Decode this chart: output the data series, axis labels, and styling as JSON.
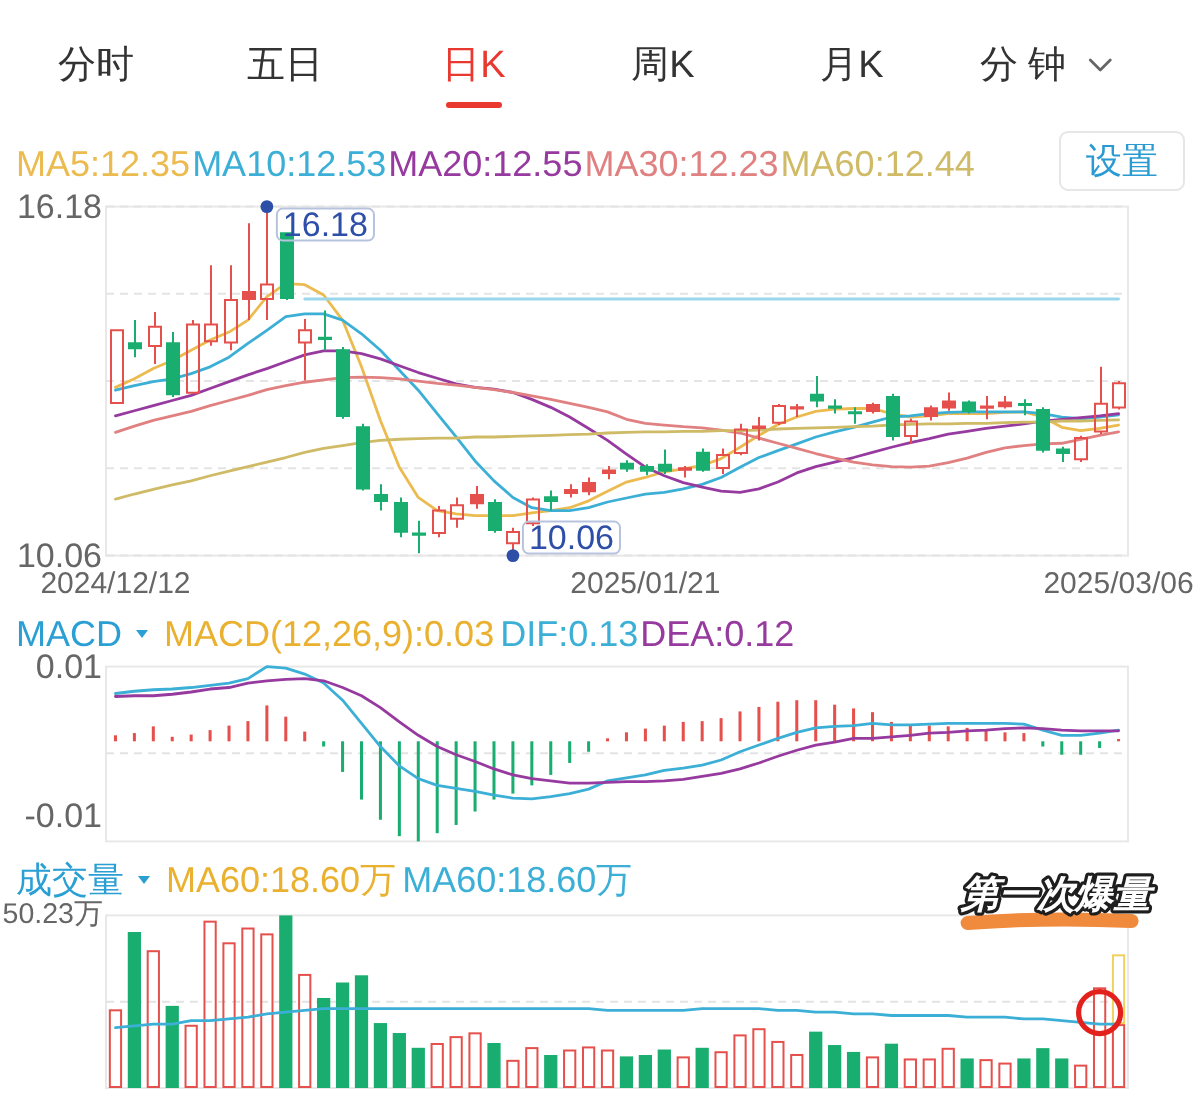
{
  "chart_data": [
    {
      "type": "other",
      "categories": [
        "分时",
        "五日",
        "日K",
        "周K",
        "月K",
        "分 钟"
      ],
      "colors": [
        "#333333",
        "#333333",
        "#e8382f",
        "#333333",
        "#333333",
        "#333333"
      ]
    },
    {
      "type": "candlestick",
      "legend": "top left",
      "grid": "y",
      "ylim": [
        10.06,
        16.18
      ],
      "yticks": [
        16.18,
        {
          "value": 14.65,
          "label": null
        },
        {
          "value": 13.12,
          "label": null
        },
        {
          "value": 11.59,
          "label": null
        },
        10.06
      ],
      "categories": [
        "2024/12/12",
        null,
        null,
        null,
        null,
        null,
        null,
        null,
        null,
        null,
        null,
        null,
        null,
        null,
        null,
        null,
        null,
        null,
        null,
        null,
        null,
        null,
        null,
        null,
        null,
        null,
        null,
        null,
        "2025/01/21",
        null,
        null,
        null,
        null,
        null,
        null,
        null,
        null,
        null,
        null,
        null,
        null,
        null,
        null,
        null,
        null,
        null,
        null,
        null,
        null,
        null,
        null,
        null,
        null,
        "2025/03/06"
      ],
      "ohlc": [
        [
          12.72,
          14.03,
          12.72,
          14.03
        ],
        [
          13.8,
          14.19,
          13.54,
          13.68
        ],
        [
          13.72,
          14.33,
          13.42,
          14.09
        ],
        [
          13.8,
          13.98,
          12.84,
          12.87
        ],
        [
          12.9,
          14.19,
          12.9,
          14.13
        ],
        [
          13.8,
          15.15,
          13.74,
          14.13
        ],
        [
          13.78,
          15.15,
          13.66,
          14.56
        ],
        [
          14.54,
          15.89,
          14.19,
          14.7
        ],
        [
          14.54,
          16.18,
          14.19,
          14.83
        ],
        [
          15.73,
          15.73,
          14.54,
          14.56
        ],
        [
          13.78,
          14.21,
          13.13,
          14.03
        ],
        [
          13.89,
          14.36,
          13.66,
          13.85
        ],
        [
          13.68,
          13.72,
          12.46,
          12.49
        ],
        [
          12.33,
          12.37,
          11.2,
          11.22
        ],
        [
          11.14,
          11.31,
          10.85,
          11.0
        ],
        [
          11.0,
          11.08,
          10.38,
          10.46
        ],
        [
          10.46,
          10.67,
          10.1,
          10.41
        ],
        [
          10.44,
          10.93,
          10.38,
          10.87
        ],
        [
          10.69,
          11.08,
          10.55,
          10.96
        ],
        [
          10.96,
          11.28,
          10.88,
          11.14
        ],
        [
          11.0,
          11.05,
          10.46,
          10.49
        ],
        [
          10.26,
          10.55,
          10.06,
          10.49
        ],
        [
          10.61,
          11.08,
          10.58,
          11.06
        ],
        [
          11.1,
          11.2,
          10.85,
          11.0
        ],
        [
          11.14,
          11.31,
          11.08,
          11.23
        ],
        [
          11.17,
          11.43,
          11.12,
          11.35
        ],
        [
          11.49,
          11.63,
          11.4,
          11.57
        ],
        [
          11.69,
          11.73,
          11.53,
          11.57
        ],
        [
          11.63,
          11.66,
          11.47,
          11.53
        ],
        [
          11.67,
          11.92,
          11.49,
          11.53
        ],
        [
          11.55,
          11.63,
          11.43,
          11.61
        ],
        [
          11.88,
          11.94,
          11.53,
          11.55
        ],
        [
          11.58,
          11.94,
          11.49,
          11.84
        ],
        [
          11.84,
          12.37,
          11.82,
          12.29
        ],
        [
          12.28,
          12.49,
          12.08,
          12.34
        ],
        [
          12.37,
          12.72,
          12.35,
          12.7
        ],
        [
          12.64,
          12.72,
          12.49,
          12.66
        ],
        [
          12.9,
          13.21,
          12.66,
          12.76
        ],
        [
          12.69,
          12.8,
          12.55,
          12.64
        ],
        [
          12.58,
          12.66,
          12.37,
          12.55
        ],
        [
          12.58,
          12.74,
          12.55,
          12.72
        ],
        [
          12.86,
          12.9,
          12.08,
          12.14
        ],
        [
          12.14,
          12.46,
          12.02,
          12.43
        ],
        [
          12.49,
          12.69,
          12.43,
          12.66
        ],
        [
          12.64,
          12.92,
          12.6,
          12.78
        ],
        [
          12.76,
          12.78,
          12.55,
          12.58
        ],
        [
          12.64,
          12.86,
          12.45,
          12.69
        ],
        [
          12.66,
          12.86,
          12.64,
          12.76
        ],
        [
          12.73,
          12.8,
          12.52,
          12.69
        ],
        [
          12.63,
          12.66,
          11.87,
          11.9
        ],
        [
          11.94,
          11.97,
          11.7,
          11.84
        ],
        [
          11.73,
          12.16,
          11.7,
          12.14
        ],
        [
          12.22,
          13.37,
          12.19,
          12.74
        ],
        [
          12.64,
          13.12,
          12.62,
          13.1
        ]
      ],
      "colors": [
        "#e5504c",
        "#19ae6f",
        "#e5504c",
        "#19ae6f",
        "#e5504c",
        "#e5504c",
        "#e5504c",
        "#e5504c",
        "#e5504c",
        "#19ae6f",
        "#e5504c",
        "#19ae6f",
        "#19ae6f",
        "#19ae6f",
        "#19ae6f",
        "#19ae6f",
        "#19ae6f",
        "#e5504c",
        "#e5504c",
        "#e5504c",
        "#19ae6f",
        "#e5504c",
        "#e5504c",
        "#19ae6f",
        "#e5504c",
        "#e5504c",
        "#e5504c",
        "#19ae6f",
        "#19ae6f",
        "#19ae6f",
        "#e5504c",
        "#19ae6f",
        "#e5504c",
        "#e5504c",
        "#e5504c",
        "#e5504c",
        "#e5504c",
        "#19ae6f",
        "#19ae6f",
        "#19ae6f",
        "#e5504c",
        "#19ae6f",
        "#e5504c",
        "#e5504c",
        "#e5504c",
        "#19ae6f",
        "#e5504c",
        "#e5504c",
        "#19ae6f",
        "#19ae6f",
        "#19ae6f",
        "#e5504c",
        "#e5504c",
        "#e5504c"
      ],
      "series": [
        {
          "name": "MA5:12.35",
          "type": "line",
          "color": "#ecbb4f",
          "values": [
            13.01,
            13.16,
            13.34,
            13.48,
            13.66,
            13.84,
            13.98,
            14.19,
            14.6,
            14.83,
            14.81,
            14.63,
            14.19,
            13.37,
            12.43,
            11.61,
            11.08,
            10.85,
            10.79,
            10.76,
            10.76,
            10.76,
            10.81,
            10.85,
            10.9,
            11.02,
            11.19,
            11.35,
            11.43,
            11.53,
            11.58,
            11.64,
            11.76,
            11.96,
            12.17,
            12.36,
            12.49,
            12.59,
            12.63,
            12.64,
            12.64,
            12.55,
            12.49,
            12.51,
            12.55,
            12.55,
            12.55,
            12.57,
            12.58,
            12.49,
            12.31,
            12.25,
            12.29,
            12.35
          ]
        },
        {
          "name": "MA10:12.53",
          "type": "line",
          "color": "#3cafd6",
          "values": [
            12.96,
            13.04,
            13.11,
            13.16,
            13.25,
            13.37,
            13.54,
            13.78,
            14.01,
            14.25,
            14.3,
            14.3,
            14.19,
            13.95,
            13.66,
            13.31,
            12.96,
            12.55,
            12.14,
            11.72,
            11.37,
            11.08,
            10.9,
            10.85,
            10.85,
            10.9,
            11.0,
            11.07,
            11.14,
            11.17,
            11.23,
            11.31,
            11.43,
            11.61,
            11.78,
            11.9,
            12.02,
            12.14,
            12.23,
            12.31,
            12.4,
            12.49,
            12.51,
            12.55,
            12.57,
            12.58,
            12.58,
            12.58,
            12.58,
            12.55,
            12.49,
            12.46,
            12.49,
            12.53
          ]
        },
        {
          "name": "MA20:12.55",
          "type": "line",
          "color": "#973a9f",
          "values": [
            12.51,
            12.6,
            12.69,
            12.78,
            12.87,
            12.99,
            13.11,
            13.23,
            13.34,
            13.46,
            13.58,
            13.65,
            13.65,
            13.6,
            13.51,
            13.39,
            13.27,
            13.17,
            13.07,
            13.01,
            12.98,
            12.92,
            12.8,
            12.66,
            12.49,
            12.29,
            12.08,
            11.84,
            11.61,
            11.46,
            11.34,
            11.26,
            11.19,
            11.17,
            11.23,
            11.35,
            11.51,
            11.62,
            11.7,
            11.78,
            11.87,
            11.96,
            12.04,
            12.11,
            12.19,
            12.24,
            12.29,
            12.33,
            12.37,
            12.42,
            12.45,
            12.48,
            12.51,
            12.55
          ]
        },
        {
          "name": "MA30:12.23",
          "type": "line",
          "color": "#e08080",
          "values": [
            12.22,
            12.33,
            12.43,
            12.51,
            12.59,
            12.69,
            12.78,
            12.87,
            12.97,
            13.04,
            13.1,
            13.14,
            13.18,
            13.19,
            13.18,
            13.16,
            13.12,
            13.08,
            13.05,
            13.01,
            12.97,
            12.92,
            12.86,
            12.8,
            12.73,
            12.66,
            12.58,
            12.45,
            12.38,
            12.35,
            12.32,
            12.3,
            12.26,
            12.21,
            12.12,
            12.03,
            11.94,
            11.85,
            11.77,
            11.7,
            11.65,
            11.62,
            11.61,
            11.63,
            11.69,
            11.77,
            11.87,
            11.95,
            11.99,
            12.02,
            12.03,
            12.1,
            12.17,
            12.23
          ]
        },
        {
          "name": "MA60:12.44",
          "type": "line",
          "color": "#cfba66",
          "values": [
            11.05,
            11.14,
            11.22,
            11.3,
            11.37,
            11.46,
            11.54,
            11.62,
            11.7,
            11.78,
            11.87,
            11.94,
            11.99,
            12.04,
            12.08,
            12.1,
            12.11,
            12.12,
            12.12,
            12.14,
            12.14,
            12.15,
            12.16,
            12.17,
            12.18,
            12.19,
            12.21,
            12.22,
            12.23,
            12.23,
            12.24,
            12.24,
            12.25,
            12.25,
            12.26,
            12.28,
            12.29,
            12.3,
            12.31,
            12.32,
            12.33,
            12.35,
            12.36,
            12.37,
            12.37,
            12.38,
            12.38,
            12.39,
            12.4,
            12.4,
            12.42,
            12.42,
            12.43,
            12.44
          ]
        },
        {
          "type": "line",
          "color": "#9ad7ea",
          "values": [
            null,
            null,
            null,
            null,
            null,
            null,
            null,
            null,
            null,
            null,
            14.56,
            14.56,
            14.56,
            14.56,
            14.56,
            14.56,
            14.56,
            14.56,
            14.56,
            14.56,
            14.56,
            14.56,
            14.56,
            14.56,
            14.56,
            14.56,
            14.56,
            14.56,
            14.56,
            14.56,
            14.56,
            14.56,
            14.56,
            14.56,
            14.56,
            14.56,
            14.56,
            14.56,
            14.56,
            14.56,
            14.56,
            14.56,
            14.56,
            14.56,
            14.56,
            14.56,
            14.56,
            14.56,
            14.56,
            14.56,
            14.56,
            14.56,
            14.56,
            14.56
          ]
        }
      ],
      "annotations": [
        "设置",
        "16.18",
        "10.06"
      ]
    },
    {
      "type": "bar",
      "title": "MACD",
      "subtitle": "MACD(12,26,9):0.03",
      "legend": "top",
      "tick_labels": "y",
      "ylim": [
        -0.0134,
        0.01
      ],
      "yticks": [
        0.01,
        -0.01
      ],
      "ref_lines": [
        {
          "axis": "y",
          "value": -0.0016,
          "line_style": "dashed",
          "color": "#e3e3e3"
        }
      ],
      "categories": [
        null,
        null,
        null,
        null,
        null,
        null,
        null,
        null,
        null,
        null,
        null,
        null,
        null,
        null,
        null,
        null,
        null,
        null,
        null,
        null,
        null,
        null,
        null,
        null,
        null,
        null,
        null,
        null,
        null,
        null,
        null,
        null,
        null,
        null,
        null,
        null,
        null,
        null,
        null,
        null,
        null,
        null,
        null,
        null,
        null,
        null,
        null,
        null,
        null,
        null,
        null,
        null,
        null,
        null
      ],
      "series": [
        {
          "type": "bar",
          "colors": [
            "#e5504c",
            "#e5504c",
            "#e5504c",
            "#e5504c",
            "#e5504c",
            "#e5504c",
            "#e5504c",
            "#e5504c",
            "#e5504c",
            "#e5504c",
            "#e5504c",
            "#19ae6f",
            "#19ae6f",
            "#19ae6f",
            "#19ae6f",
            "#19ae6f",
            "#19ae6f",
            "#19ae6f",
            "#19ae6f",
            "#19ae6f",
            "#19ae6f",
            "#19ae6f",
            "#19ae6f",
            "#19ae6f",
            "#19ae6f",
            "#19ae6f",
            "#e5504c",
            "#e5504c",
            "#e5504c",
            "#e5504c",
            "#e5504c",
            "#e5504c",
            "#e5504c",
            "#e5504c",
            "#e5504c",
            "#e5504c",
            "#e5504c",
            "#e5504c",
            "#e5504c",
            "#e5504c",
            "#e5504c",
            "#e5504c",
            "#e5504c",
            "#e5504c",
            "#e5504c",
            "#e5504c",
            "#e5504c",
            "#e5504c",
            "#e5504c",
            "#19ae6f",
            "#19ae6f",
            "#19ae6f",
            "#19ae6f",
            "#e5504c"
          ],
          "values": [
            0.0008,
            0.0011,
            0.002,
            0.0006,
            0.0009,
            0.0015,
            0.0021,
            0.0027,
            0.0048,
            0.0033,
            0.0013,
            -0.0007,
            -0.0041,
            -0.0078,
            -0.0105,
            -0.0127,
            -0.0134,
            -0.0123,
            -0.0112,
            -0.0094,
            -0.0078,
            -0.007,
            -0.0059,
            -0.0045,
            -0.0029,
            -0.0014,
            0.0004,
            0.0012,
            0.0017,
            0.0021,
            0.0026,
            0.0027,
            0.0031,
            0.004,
            0.0046,
            0.0053,
            0.0055,
            0.0055,
            0.0049,
            0.0044,
            0.0039,
            0.0026,
            0.0022,
            0.0021,
            0.002,
            0.0018,
            0.0015,
            0.0012,
            0.0011,
            -0.0007,
            -0.0018,
            -0.0018,
            -0.0009,
            0.0003
          ]
        },
        {
          "name": "DIF:0.13",
          "type": "line",
          "color": "#3cafd6",
          "values": [
            0.0064,
            0.0067,
            0.0069,
            0.007,
            0.0072,
            0.0075,
            0.0078,
            0.0084,
            0.01,
            0.0098,
            0.009,
            0.0078,
            0.0055,
            0.0024,
            -0.0007,
            -0.0033,
            -0.005,
            -0.0059,
            -0.0063,
            -0.0067,
            -0.0072,
            -0.0076,
            -0.0077,
            -0.0074,
            -0.007,
            -0.0064,
            -0.0053,
            -0.0049,
            -0.0045,
            -0.0039,
            -0.0036,
            -0.0032,
            -0.0025,
            -0.0014,
            -0.0005,
            0.0004,
            0.0012,
            0.0018,
            0.002,
            0.0021,
            0.0024,
            0.0022,
            0.0022,
            0.0023,
            0.0024,
            0.0024,
            0.0024,
            0.0024,
            0.0023,
            0.0015,
            0.0008,
            0.0008,
            0.0011,
            0.0015
          ]
        },
        {
          "name": "DEA:0.12",
          "type": "line",
          "color": "#973a9f",
          "values": [
            0.006,
            0.0061,
            0.0061,
            0.0063,
            0.0066,
            0.007,
            0.0072,
            0.0078,
            0.0081,
            0.0083,
            0.0084,
            0.0081,
            0.0072,
            0.0061,
            0.0045,
            0.0026,
            0.0008,
            -0.0007,
            -0.0018,
            -0.0027,
            -0.0037,
            -0.0045,
            -0.005,
            -0.0053,
            -0.0056,
            -0.0056,
            -0.0055,
            -0.0054,
            -0.0054,
            -0.0053,
            -0.0051,
            -0.0047,
            -0.0043,
            -0.0037,
            -0.0029,
            -0.002,
            -0.0012,
            -0.0005,
            -0.0001,
            0.0004,
            0.0004,
            0.0006,
            0.0008,
            0.0011,
            0.0012,
            0.0014,
            0.0015,
            0.0017,
            0.0018,
            0.0017,
            0.0015,
            0.0014,
            0.0014,
            0.0014
          ]
        }
      ]
    },
    {
      "type": "bar",
      "title": "成交量",
      "subtitle": "MA60:18.60万",
      "legend": "top left",
      "stacked": true,
      "tick_labels": "y",
      "ylim": [
        0,
        50.23
      ],
      "yticks": [
        {
          "value": 50.23,
          "label": "50.23万"
        }
      ],
      "ref_lines": [
        {
          "axis": "y",
          "value": 25.1,
          "line_style": "dashed",
          "color": "#e3e3e3"
        }
      ],
      "categories": [
        null,
        null,
        null,
        null,
        null,
        null,
        null,
        null,
        null,
        null,
        null,
        null,
        null,
        null,
        null,
        null,
        null,
        null,
        null,
        null,
        null,
        null,
        null,
        null,
        null,
        null,
        null,
        null,
        null,
        null,
        null,
        null,
        null,
        null,
        null,
        null,
        null,
        null,
        null,
        null,
        null,
        null,
        null,
        null,
        null,
        null,
        null,
        null,
        null,
        null,
        null,
        null,
        null,
        null
      ],
      "series": [
        {
          "type": "bar",
          "colors": [
            "#e5504c",
            "#19ae6f",
            "#e5504c",
            "#19ae6f",
            "#e5504c",
            "#e5504c",
            "#e5504c",
            "#e5504c",
            "#e5504c",
            "#19ae6f",
            "#e5504c",
            "#19ae6f",
            "#19ae6f",
            "#19ae6f",
            "#19ae6f",
            "#19ae6f",
            "#19ae6f",
            "#e5504c",
            "#e5504c",
            "#e5504c",
            "#19ae6f",
            "#e5504c",
            "#e5504c",
            "#19ae6f",
            "#e5504c",
            "#e5504c",
            "#e5504c",
            "#19ae6f",
            "#19ae6f",
            "#19ae6f",
            "#e5504c",
            "#19ae6f",
            "#e5504c",
            "#e5504c",
            "#e5504c",
            "#e5504c",
            "#e5504c",
            "#19ae6f",
            "#19ae6f",
            "#19ae6f",
            "#e5504c",
            "#19ae6f",
            "#e5504c",
            "#e5504c",
            "#e5504c",
            "#19ae6f",
            "#e5504c",
            "#e5504c",
            "#19ae6f",
            "#19ae6f",
            "#19ae6f",
            "#e5504c",
            "#e5504c",
            "#e5504c"
          ],
          "values": [
            22.9,
            45.4,
            40.1,
            23.9,
            18.4,
            48.7,
            42.4,
            46.7,
            45.0,
            50.23,
            33.2,
            26.2,
            30.7,
            32.8,
            18.9,
            16.0,
            11.7,
            13.1,
            15.1,
            16.2,
            13.1,
            8.2,
            11.9,
            9.6,
            11.2,
            12.1,
            11.2,
            9.2,
            9.6,
            11.2,
            9.2,
            11.7,
            10.7,
            15.6,
            17.4,
            13.7,
            9.9,
            16.4,
            12.5,
            10.5,
            9.2,
            12.9,
            8.6,
            8.6,
            11.7,
            8.6,
            8.4,
            7.4,
            8.6,
            11.6,
            8.6,
            6.8,
            29.3,
            18.6
          ]
        },
        {
          "type": "bar",
          "color": "#efd15f",
          "values": [
            null,
            null,
            null,
            null,
            null,
            null,
            null,
            null,
            null,
            null,
            null,
            null,
            null,
            null,
            null,
            null,
            null,
            null,
            null,
            null,
            null,
            null,
            null,
            null,
            null,
            null,
            null,
            null,
            null,
            null,
            null,
            null,
            null,
            null,
            null,
            null,
            null,
            null,
            null,
            null,
            null,
            null,
            null,
            null,
            null,
            null,
            null,
            null,
            null,
            null,
            null,
            null,
            null,
            20.3
          ]
        },
        {
          "name": "MA60:18.60万",
          "type": "line",
          "color": "#3cafd6",
          "values": [
            17.6,
            18.1,
            18.6,
            18.6,
            19.6,
            19.6,
            20.1,
            20.6,
            21.6,
            22.1,
            22.6,
            23.1,
            23.1,
            23.1,
            23.1,
            23.1,
            23.1,
            23.1,
            23.1,
            23.1,
            23.1,
            23.1,
            23.1,
            23.1,
            23.1,
            23.1,
            22.6,
            22.6,
            22.6,
            22.6,
            22.6,
            23.1,
            23.1,
            23.1,
            23.1,
            22.6,
            22.6,
            22.1,
            22.1,
            21.6,
            21.6,
            21.1,
            21.1,
            21.1,
            21.1,
            20.6,
            20.6,
            20.6,
            20.1,
            20.1,
            19.6,
            19.1,
            18.6,
            18.6
          ]
        }
      ],
      "annotations": [
        "第一次爆量"
      ]
    }
  ]
}
